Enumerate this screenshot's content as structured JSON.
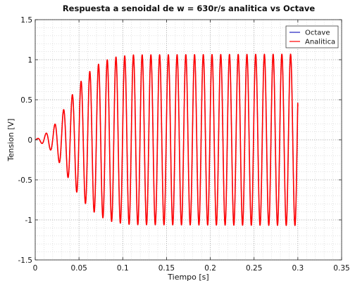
{
  "chart_data": {
    "type": "line",
    "title": "Respuesta a senoidal de w = 630r/s analitica vs Octave",
    "xlabel": "Tiempo [s]",
    "ylabel": "Tension [V]",
    "xlim": [
      0,
      0.35
    ],
    "ylim": [
      -1.5,
      1.5
    ],
    "xticks": [
      0,
      0.05,
      0.1,
      0.15,
      0.2,
      0.25,
      0.3,
      0.35
    ],
    "xtick_labels": [
      "0",
      "0.05",
      "0.1",
      "0.15",
      "0.2",
      "0.25",
      "0.3",
      "0.35"
    ],
    "yticks": [
      -1.5,
      -1,
      -0.5,
      0,
      0.5,
      1,
      1.5
    ],
    "ytick_labels": [
      "-1.5",
      "-1",
      "-0.5",
      "0",
      "0.5",
      "1",
      "1.5"
    ],
    "grid": "major-and-minor-dotted",
    "legend_position": "top-right",
    "signal": {
      "omega_rad_s": 630,
      "t_start": 0,
      "t_end": 0.3,
      "steady_amplitude": 1.07,
      "final_value": 0.42,
      "envelope_points": [
        {
          "t": 0.0,
          "amp": 0.0
        },
        {
          "t": 0.01,
          "amp": 0.06
        },
        {
          "t": 0.02,
          "amp": 0.15
        },
        {
          "t": 0.03,
          "amp": 0.33
        },
        {
          "t": 0.04,
          "amp": 0.52
        },
        {
          "t": 0.05,
          "amp": 0.7
        },
        {
          "t": 0.06,
          "amp": 0.83
        },
        {
          "t": 0.07,
          "amp": 0.93
        },
        {
          "t": 0.08,
          "amp": 0.99
        },
        {
          "t": 0.09,
          "amp": 1.03
        },
        {
          "t": 0.11,
          "amp": 1.06
        },
        {
          "t": 0.3,
          "amp": 1.07
        }
      ]
    },
    "series": [
      {
        "name": "Octave",
        "color": "#1f1fbf"
      },
      {
        "name": "Analitica",
        "color": "#ff0000"
      }
    ]
  }
}
